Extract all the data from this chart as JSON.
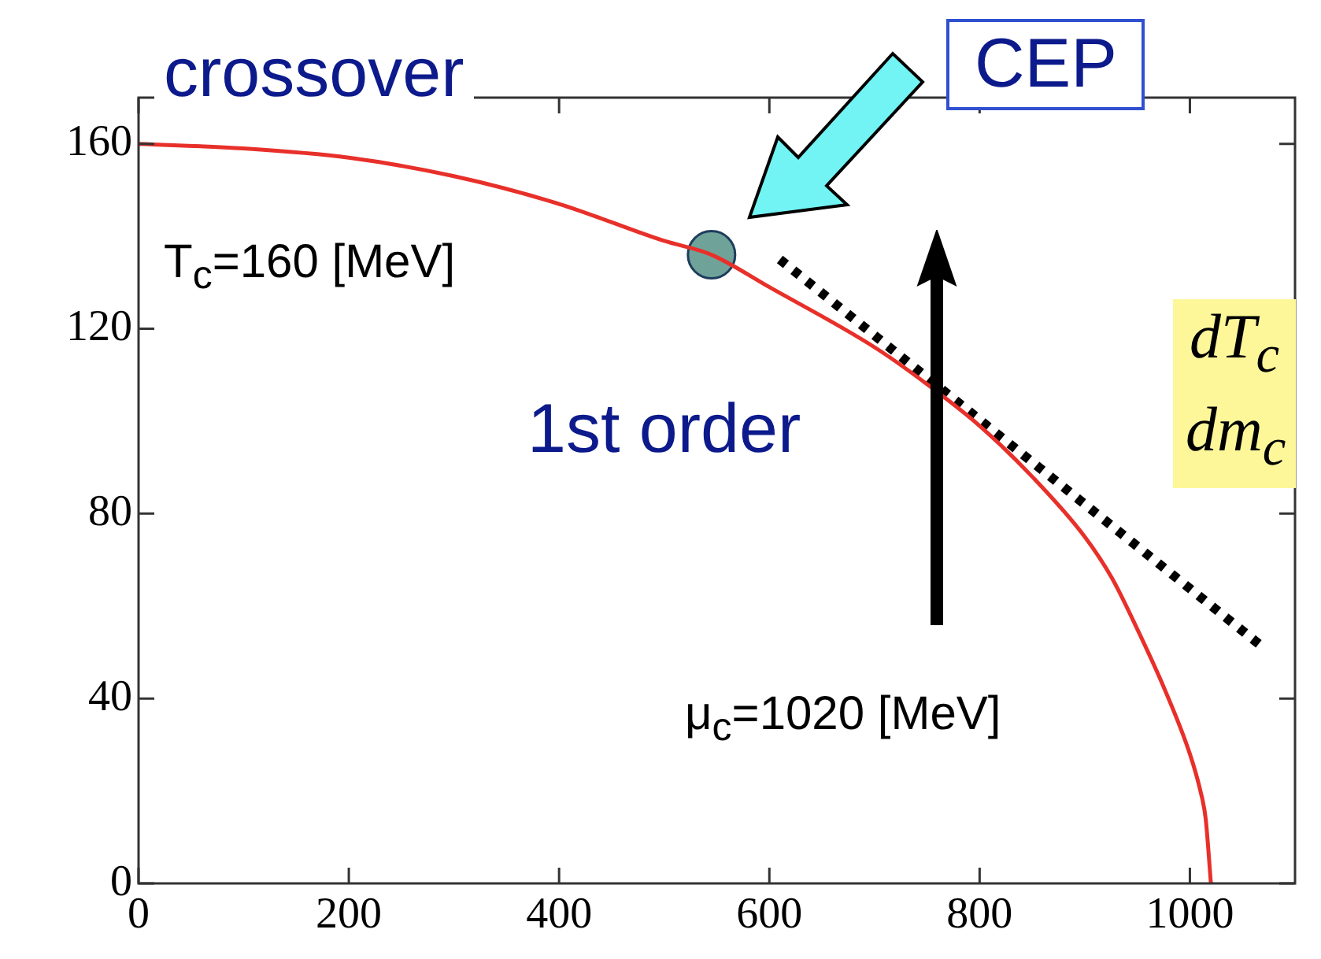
{
  "chart_data": {
    "type": "line",
    "xlim": [
      0,
      1100
    ],
    "ylim": [
      0,
      170
    ],
    "xticks": [
      0,
      200,
      400,
      600,
      800,
      1000
    ],
    "yticks": [
      0,
      40,
      80,
      120,
      160
    ],
    "grid": false,
    "legend": false,
    "marker": "none",
    "series": [
      {
        "color": "#e8302a",
        "x": [
          0,
          100,
          200,
          300,
          400,
          500,
          545,
          600,
          700,
          750,
          800,
          850,
          900,
          926,
          950,
          976,
          1000,
          1010,
          1015,
          1020
        ],
        "values": [
          160,
          159,
          157,
          153,
          147,
          139,
          136,
          129,
          116,
          108,
          99,
          88,
          75,
          66,
          55,
          42,
          28,
          20,
          14,
          0
        ]
      },
      {
        "type": "scatter",
        "color": "#6fa39a",
        "marker": "circle",
        "x": [
          545
        ],
        "values": [
          136
        ]
      },
      {
        "type": "line",
        "color": "#000000",
        "line_style": "dotted",
        "x": [
          610,
          1070
        ],
        "values": [
          135,
          51
        ]
      }
    ],
    "annotations": [
      "crossover",
      "CEP",
      "T$_{c}$=160  [MeV]",
      "1st order",
      "μ$_{c}$=1020  [MeV]",
      "dT$_{c}$",
      "dm$_{c}$"
    ]
  }
}
